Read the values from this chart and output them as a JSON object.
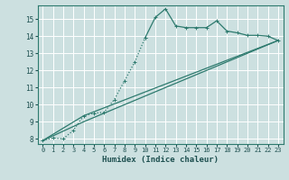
{
  "xlabel": "Humidex (Indice chaleur)",
  "bg_color": "#cce0e0",
  "grid_color": "#ffffff",
  "line_color": "#2d7a6e",
  "xlim": [
    -0.5,
    23.5
  ],
  "ylim": [
    7.7,
    15.8
  ],
  "yticks": [
    8,
    9,
    10,
    11,
    12,
    13,
    14,
    15
  ],
  "xticks": [
    0,
    1,
    2,
    3,
    4,
    5,
    6,
    7,
    8,
    9,
    10,
    11,
    12,
    13,
    14,
    15,
    16,
    17,
    18,
    19,
    20,
    21,
    22,
    23
  ],
  "line1_x": [
    0,
    1,
    2,
    3,
    4,
    5,
    6,
    7,
    8,
    9,
    10,
    11,
    12,
    13,
    14,
    15,
    16,
    17,
    18,
    19,
    20,
    21,
    22,
    23
  ],
  "line1_y": [
    7.9,
    8.05,
    8.0,
    8.5,
    9.35,
    9.5,
    9.55,
    10.3,
    11.4,
    12.5,
    13.9,
    15.1,
    15.6,
    14.6,
    14.5,
    14.5,
    14.5,
    14.9,
    14.3,
    14.2,
    14.05,
    14.05,
    14.0,
    13.75
  ],
  "line1_dotted_end": 10,
  "line2_x": [
    0,
    4,
    23
  ],
  "line2_y": [
    7.9,
    9.35,
    13.75
  ],
  "line3_x": [
    0,
    4,
    23
  ],
  "line3_y": [
    7.9,
    9.0,
    13.75
  ]
}
